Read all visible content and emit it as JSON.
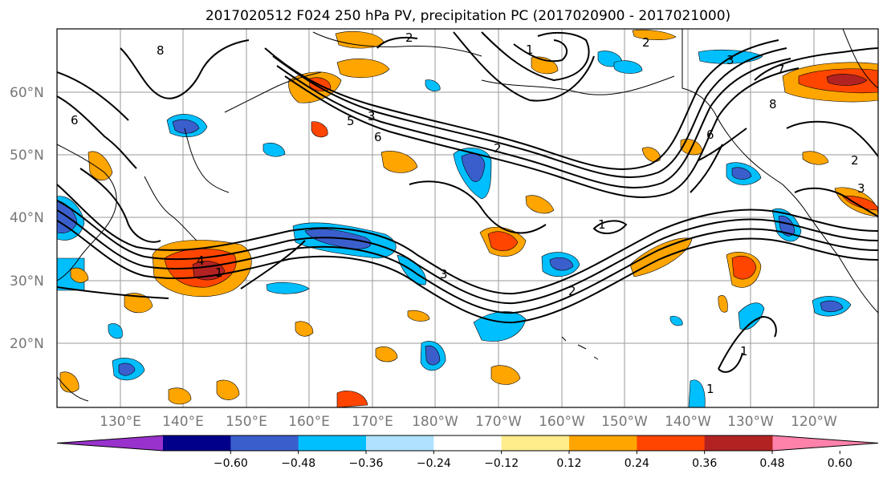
{
  "title": "2017020512 F024 250 hPa PV, precipitation PC (2017020900 - 2017021000)",
  "lat_labels": [
    "60°N",
    "50°N",
    "40°N",
    "30°N",
    "20°N"
  ],
  "lon_labels": [
    "130°E",
    "140°E",
    "150°E",
    "160°E",
    "170°E",
    "180°W",
    "170°W",
    "160°W",
    "150°W",
    "140°W",
    "130°W",
    "120°W"
  ],
  "colorbar": {
    "ticks": [
      "−0.60",
      "−0.48",
      "−0.36",
      "−0.24",
      "−0.12",
      "0.12",
      "0.24",
      "0.36",
      "0.48",
      "0.60"
    ],
    "colors": [
      "#9932CC",
      "#00008B",
      "#3A5FCD",
      "#00BFFF",
      "#B0E2FF",
      "#FFFFFF",
      "#FFEC8B",
      "#FFA500",
      "#FF4500",
      "#B22222",
      "#FF82AB"
    ]
  },
  "contour_labels": [
    "2",
    "8",
    "6",
    "3",
    "5",
    "6",
    "2",
    "1",
    "4",
    "1",
    "3",
    "2",
    "1",
    "2",
    "6",
    "8",
    "7",
    "3",
    "1",
    "2",
    "3",
    "1"
  ]
}
